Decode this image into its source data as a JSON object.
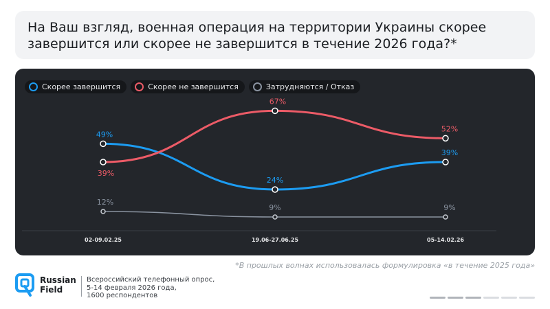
{
  "question": "На Ваш взгляд, военная операция на территории Украины скорее завершится или скорее не завершится в течение 2026 года?*",
  "chart_data": {
    "type": "line",
    "categories": [
      "02-09.02.25",
      "19.06-27.06.25",
      "05-14.02.26"
    ],
    "series": [
      {
        "name": "Скорее завершится",
        "color": "#1c9cf2",
        "values": [
          49,
          24,
          39
        ],
        "labels": [
          "49%",
          "24%",
          "39%"
        ]
      },
      {
        "name": "Скорее не завершится",
        "color": "#ec5b67",
        "values": [
          39,
          67,
          52
        ],
        "labels": [
          "39%",
          "67%",
          "52%"
        ]
      },
      {
        "name": "Затрудняются / Отказ",
        "color": "#8a93a0",
        "values": [
          12,
          9,
          9
        ],
        "labels": [
          "12%",
          "9%",
          "9%"
        ]
      }
    ],
    "ylim": [
      0,
      75
    ],
    "legend": "top-left"
  },
  "footnote": "*В прошлых волнах использовалась формулировка «в течение 2025 года»",
  "brand": {
    "line1": "Russian",
    "line2": "Field"
  },
  "source": {
    "line1": "Всероссийский телефонный опрос,",
    "line2": "5-14 февраля 2026 года,",
    "line3": "1600 респондентов"
  },
  "colors": {
    "panel": "#23262b",
    "brand": "#1c9cf2"
  }
}
